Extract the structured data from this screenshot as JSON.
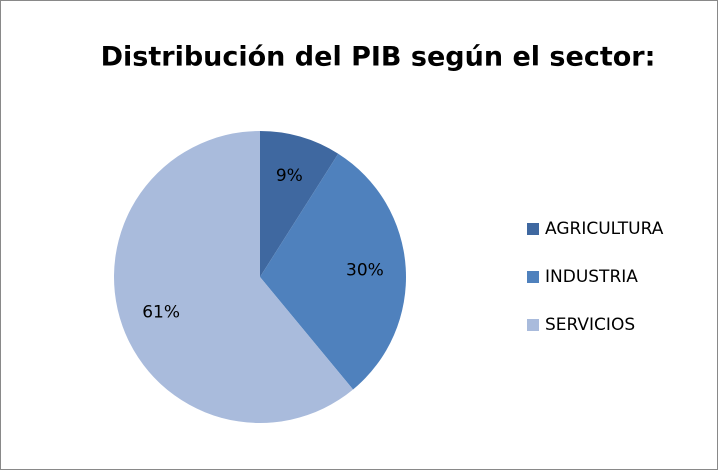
{
  "chart_data": {
    "type": "pie",
    "title": "Distribución del PIB según el sector:",
    "categories": [
      "AGRICULTURA",
      "INDUSTRIA",
      "SERVICIOS"
    ],
    "values": [
      9,
      30,
      61
    ],
    "value_labels": [
      "9%",
      "30%",
      "61%"
    ],
    "colors": [
      "#3f68a0",
      "#4f81bd",
      "#a9bbdc"
    ],
    "legend": "right"
  }
}
